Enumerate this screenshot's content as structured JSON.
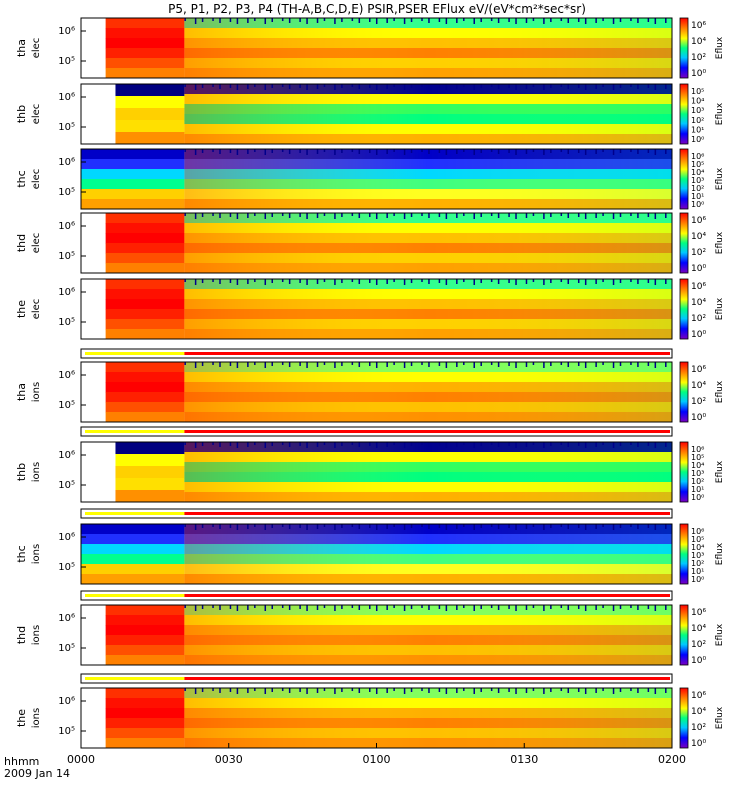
{
  "chart_data": {
    "type": "heatmap",
    "title": "P5, P1, P2, P3, P4 (TH-A,B,C,D,E) PSIR,PSER EFlux eV/(eV*cm²*sec*sr)",
    "x_ticks": [
      "0000",
      "0030",
      "0100",
      "0130",
      "0200"
    ],
    "xlabel_line1": "hhmm",
    "xlabel_line2": "2009 Jan 14",
    "xlim": [
      "00:00",
      "02:00"
    ],
    "colorbar_label": "Eflux",
    "panels": [
      {
        "probe": "tha",
        "species": "elec",
        "yticks": [
          "10⁶",
          "10⁵"
        ],
        "cbar_ticks": [
          "10⁶",
          "10⁴",
          "10²",
          "10⁰"
        ],
        "cbar_range": [
          0,
          7
        ],
        "data_start": "00:05",
        "regime_change": "00:21"
      },
      {
        "probe": "thb",
        "species": "elec",
        "yticks": [
          "10⁶",
          "10⁵"
        ],
        "cbar_ticks": [
          "10⁵",
          "10⁴",
          "10³",
          "10²",
          "10¹",
          "10⁰"
        ],
        "cbar_range": [
          0,
          5
        ],
        "data_start": "00:07",
        "regime_change": "00:21"
      },
      {
        "probe": "thc",
        "species": "elec",
        "yticks": [
          "10⁶",
          "10⁵"
        ],
        "cbar_ticks": [
          "10⁶",
          "10⁵",
          "10⁴",
          "10³",
          "10²",
          "10¹",
          "10⁰"
        ],
        "cbar_range": [
          0,
          6
        ],
        "data_start": "00:00",
        "regime_change": "00:21"
      },
      {
        "probe": "thd",
        "species": "elec",
        "yticks": [
          "10⁶",
          "10⁵"
        ],
        "cbar_ticks": [
          "10⁶",
          "10⁴",
          "10²",
          "10⁰"
        ],
        "cbar_range": [
          0,
          7
        ],
        "data_start": "00:05",
        "regime_change": "00:21"
      },
      {
        "probe": "the",
        "species": "elec",
        "yticks": [
          "10⁶",
          "10⁵"
        ],
        "cbar_ticks": [
          "10⁶",
          "10⁴",
          "10²",
          "10⁰"
        ],
        "cbar_range": [
          0,
          7
        ],
        "data_start": "00:05",
        "regime_change": "00:21"
      },
      {
        "probe": "tha",
        "species": "ions",
        "yticks": [
          "10⁶",
          "10⁵"
        ],
        "cbar_ticks": [
          "10⁶",
          "10⁴",
          "10²",
          "10⁰"
        ],
        "cbar_range": [
          0,
          7
        ],
        "data_start": "00:05",
        "regime_change": "00:21"
      },
      {
        "probe": "thb",
        "species": "ions",
        "yticks": [
          "10⁶",
          "10⁵"
        ],
        "cbar_ticks": [
          "10⁶",
          "10⁵",
          "10⁴",
          "10³",
          "10²",
          "10¹",
          "10⁰"
        ],
        "cbar_range": [
          0,
          6
        ],
        "data_start": "00:07",
        "regime_change": "00:21"
      },
      {
        "probe": "thc",
        "species": "ions",
        "yticks": [
          "10⁶",
          "10⁵"
        ],
        "cbar_ticks": [
          "10⁶",
          "10⁵",
          "10⁴",
          "10³",
          "10²",
          "10¹",
          "10⁰"
        ],
        "cbar_range": [
          0,
          6
        ],
        "data_start": "00:00",
        "regime_change": "00:21"
      },
      {
        "probe": "thd",
        "species": "ions",
        "yticks": [
          "10⁶",
          "10⁵"
        ],
        "cbar_ticks": [
          "10⁶",
          "10⁴",
          "10²",
          "10⁰"
        ],
        "cbar_range": [
          0,
          7
        ],
        "data_start": "00:05",
        "regime_change": "00:21"
      },
      {
        "probe": "the",
        "species": "ions",
        "yticks": [
          "10⁶",
          "10⁵"
        ],
        "cbar_ticks": [
          "10⁶",
          "10⁴",
          "10²",
          "10⁰"
        ],
        "cbar_range": [
          0,
          7
        ],
        "data_start": "00:05",
        "regime_change": "00:21"
      }
    ],
    "mode_bars": [
      {
        "after_panel": "the elec",
        "yellow_until": "00:21",
        "red_until": "02:00"
      },
      {
        "after_panel": "tha ions",
        "yellow_until": "00:21",
        "red_until": "02:00"
      },
      {
        "after_panel": "thb ions",
        "yellow_until": "00:21",
        "red_until": "02:00"
      },
      {
        "after_panel": "thc ions",
        "yellow_until": "00:21",
        "red_until": "02:00"
      },
      {
        "after_panel": "thd ions",
        "yellow_until": "00:21",
        "red_until": "02:00"
      }
    ],
    "colors": {
      "spectrogram_scale": [
        "#7a00c0",
        "#0000ff",
        "#00c8ff",
        "#00ff80",
        "#ffff00",
        "#ff8000",
        "#ff0000"
      ],
      "mode_bar_yellow": "#ffff00",
      "mode_bar_red": "#ff0000"
    }
  }
}
